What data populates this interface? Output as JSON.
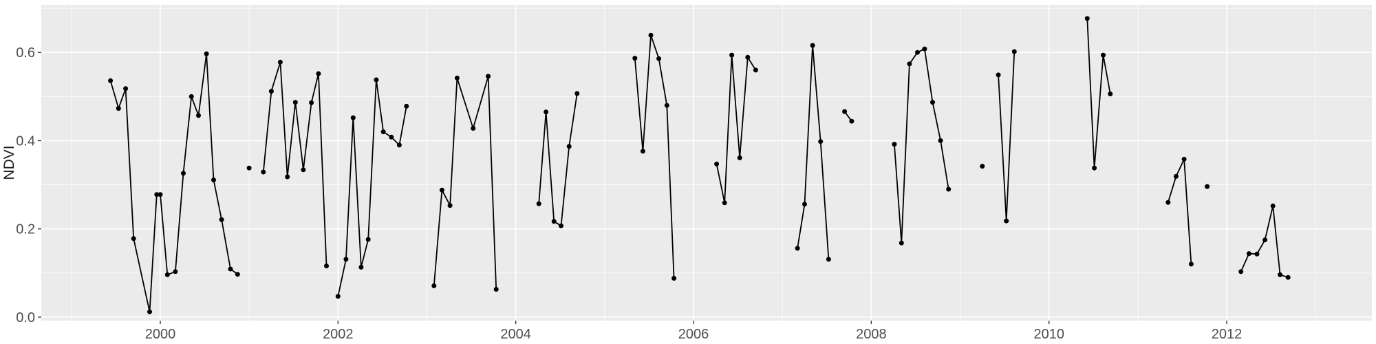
{
  "chart_data": {
    "type": "line",
    "title": "",
    "xlabel": "",
    "ylabel": "NDVI",
    "legend": "none",
    "grid": "ggplot-gray-panel-white-gridlines",
    "panel_color": "#EBEBEB",
    "gridline_color": "#FFFFFF",
    "point_color": "#000000",
    "line_color": "#000000",
    "tick_label_color": "#4D4D4D",
    "axis_title_color": "#1A1A1A",
    "tick_mark_color": "#333333",
    "xlim": [
      1998.661,
      2013.633
    ],
    "ylim": [
      -0.008,
      0.708
    ],
    "x_ticks": [
      2000,
      2002,
      2004,
      2006,
      2008,
      2010,
      2012
    ],
    "x_tick_labels": [
      "2000",
      "2002",
      "2004",
      "2006",
      "2008",
      "2010",
      "2012"
    ],
    "x_minor": [
      1999,
      2001,
      2003,
      2005,
      2007,
      2009,
      2011,
      2013
    ],
    "y_ticks": [
      0.0,
      0.2,
      0.4,
      0.6
    ],
    "y_tick_labels": [
      "0.0",
      "0.2",
      "0.4",
      "0.6"
    ],
    "y_minor": [
      0.1,
      0.3,
      0.5,
      0.7
    ],
    "series": [
      {
        "name": "NDVI",
        "segments": [
          [
            [
              1999.44,
              0.536
            ],
            [
              1999.53,
              0.473
            ],
            [
              1999.61,
              0.518
            ],
            [
              1999.7,
              0.178
            ],
            [
              1999.88,
              0.012
            ],
            [
              1999.96,
              0.278
            ],
            [
              2000.0,
              0.278
            ],
            [
              2000.08,
              0.096
            ],
            [
              2000.17,
              0.103
            ],
            [
              2000.26,
              0.326
            ],
            [
              2000.35,
              0.5
            ],
            [
              2000.43,
              0.457
            ],
            [
              2000.52,
              0.597
            ],
            [
              2000.6,
              0.311
            ],
            [
              2000.69,
              0.221
            ],
            [
              2000.79,
              0.109
            ],
            [
              2000.87,
              0.097
            ]
          ],
          [
            [
              2001.0,
              0.338
            ]
          ],
          [
            [
              2001.16,
              0.329
            ],
            [
              2001.25,
              0.512
            ],
            [
              2001.35,
              0.578
            ],
            [
              2001.43,
              0.318
            ],
            [
              2001.52,
              0.487
            ],
            [
              2001.61,
              0.334
            ],
            [
              2001.7,
              0.486
            ],
            [
              2001.78,
              0.552
            ],
            [
              2001.87,
              0.116
            ]
          ],
          [
            [
              2002.0,
              0.047
            ],
            [
              2002.09,
              0.131
            ],
            [
              2002.17,
              0.452
            ],
            [
              2002.26,
              0.113
            ],
            [
              2002.34,
              0.176
            ],
            [
              2002.43,
              0.538
            ],
            [
              2002.51,
              0.42
            ],
            [
              2002.6,
              0.408
            ],
            [
              2002.69,
              0.39
            ],
            [
              2002.77,
              0.478
            ]
          ],
          [
            [
              2003.08,
              0.071
            ],
            [
              2003.17,
              0.288
            ],
            [
              2003.26,
              0.253
            ],
            [
              2003.34,
              0.542
            ],
            [
              2003.52,
              0.428
            ],
            [
              2003.69,
              0.546
            ],
            [
              2003.78,
              0.063
            ]
          ],
          [
            [
              2004.26,
              0.257
            ],
            [
              2004.34,
              0.465
            ],
            [
              2004.43,
              0.217
            ],
            [
              2004.51,
              0.207
            ],
            [
              2004.6,
              0.387
            ],
            [
              2004.69,
              0.507
            ]
          ],
          [
            [
              2005.34,
              0.587
            ],
            [
              2005.43,
              0.376
            ],
            [
              2005.52,
              0.639
            ],
            [
              2005.61,
              0.586
            ],
            [
              2005.7,
              0.48
            ],
            [
              2005.78,
              0.088
            ]
          ],
          [
            [
              2006.26,
              0.347
            ],
            [
              2006.35,
              0.259
            ],
            [
              2006.43,
              0.594
            ],
            [
              2006.52,
              0.361
            ],
            [
              2006.61,
              0.589
            ],
            [
              2006.7,
              0.56
            ]
          ],
          [
            [
              2007.17,
              0.156
            ],
            [
              2007.25,
              0.256
            ],
            [
              2007.34,
              0.616
            ],
            [
              2007.43,
              0.398
            ],
            [
              2007.52,
              0.131
            ]
          ],
          [
            [
              2007.7,
              0.466
            ],
            [
              2007.78,
              0.444
            ]
          ],
          [
            [
              2008.26,
              0.392
            ],
            [
              2008.34,
              0.168
            ],
            [
              2008.43,
              0.574
            ],
            [
              2008.52,
              0.6
            ],
            [
              2008.6,
              0.608
            ],
            [
              2008.69,
              0.487
            ],
            [
              2008.78,
              0.4
            ],
            [
              2008.87,
              0.29
            ]
          ],
          [
            [
              2009.25,
              0.342
            ]
          ],
          [
            [
              2009.43,
              0.549
            ],
            [
              2009.52,
              0.218
            ],
            [
              2009.61,
              0.602
            ]
          ],
          [
            [
              2010.43,
              0.677
            ],
            [
              2010.51,
              0.338
            ],
            [
              2010.61,
              0.594
            ],
            [
              2010.69,
              0.506
            ]
          ],
          [
            [
              2011.34,
              0.26
            ],
            [
              2011.43,
              0.319
            ],
            [
              2011.52,
              0.358
            ],
            [
              2011.6,
              0.12
            ]
          ],
          [
            [
              2011.78,
              0.296
            ]
          ],
          [
            [
              2012.16,
              0.103
            ],
            [
              2012.25,
              0.144
            ],
            [
              2012.34,
              0.143
            ],
            [
              2012.43,
              0.175
            ],
            [
              2012.52,
              0.252
            ],
            [
              2012.6,
              0.096
            ],
            [
              2012.69,
              0.09
            ]
          ]
        ]
      }
    ]
  }
}
